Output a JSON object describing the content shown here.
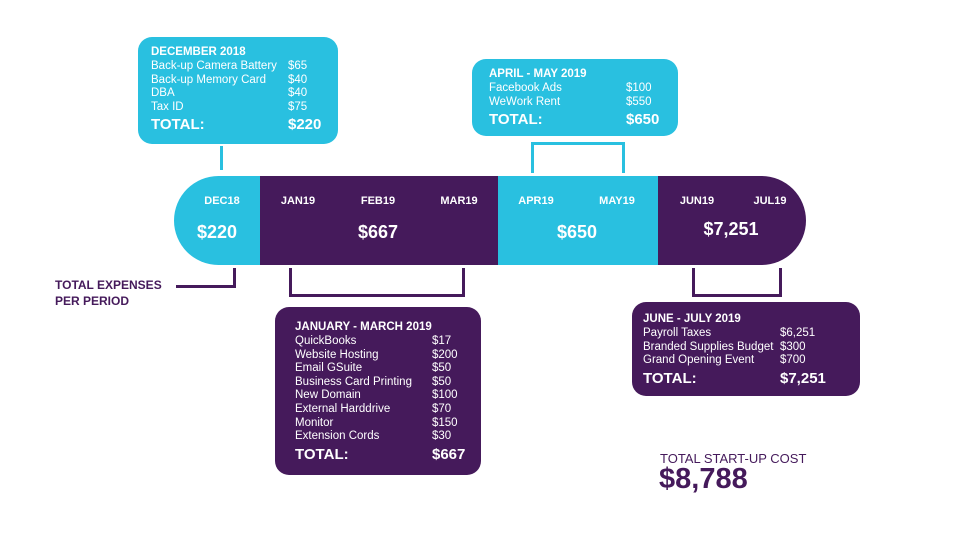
{
  "colors": {
    "cyan": "#29c0e0",
    "purple": "#451a5b"
  },
  "timeline": {
    "months": [
      "DEC18",
      "JAN19",
      "FEB19",
      "MAR19",
      "APR19",
      "MAY19",
      "JUN19",
      "JUL19"
    ],
    "period_totals": [
      "$220",
      "$667",
      "$650",
      "$7,251"
    ],
    "side_label": "TOTAL EXPENSES PER PERIOD"
  },
  "boxes": {
    "dec": {
      "heading": "DECEMBER 2018",
      "items": [
        {
          "name": "Back-up Camera Battery",
          "value": "$65"
        },
        {
          "name": "Back-up Memory Card",
          "value": "$40"
        },
        {
          "name": "DBA",
          "value": "$40"
        },
        {
          "name": "Tax ID",
          "value": "$75"
        }
      ],
      "total_label": "TOTAL:",
      "total_value": "$220"
    },
    "aprmay": {
      "heading": "APRIL - MAY 2019",
      "items": [
        {
          "name": "Facebook Ads",
          "value": "$100"
        },
        {
          "name": "WeWork Rent",
          "value": "$550"
        }
      ],
      "total_label": "TOTAL:",
      "total_value": "$650"
    },
    "janmar": {
      "heading": "JANUARY - MARCH 2019",
      "items": [
        {
          "name": "QuickBooks",
          "value": "$17"
        },
        {
          "name": "Website Hosting",
          "value": "$200"
        },
        {
          "name": "Email GSuite",
          "value": "$50"
        },
        {
          "name": "Business Card Printing",
          "value": "$50"
        },
        {
          "name": "New Domain",
          "value": "$100"
        },
        {
          "name": "External Harddrive",
          "value": "$70"
        },
        {
          "name": "Monitor",
          "value": "$150"
        },
        {
          "name": "Extension Cords",
          "value": "$30"
        }
      ],
      "total_label": "TOTAL:",
      "total_value": "$667"
    },
    "junjul": {
      "heading": "JUNE - JULY 2019",
      "items": [
        {
          "name": "Payroll Taxes",
          "value": "$6,251"
        },
        {
          "name": "Branded Supplies Budget",
          "value": "$300"
        },
        {
          "name": "Grand Opening Event",
          "value": "$700"
        }
      ],
      "total_label": "TOTAL:",
      "total_value": "$7,251"
    }
  },
  "startup": {
    "label": "TOTAL START-UP COST",
    "value": "$8,788"
  }
}
